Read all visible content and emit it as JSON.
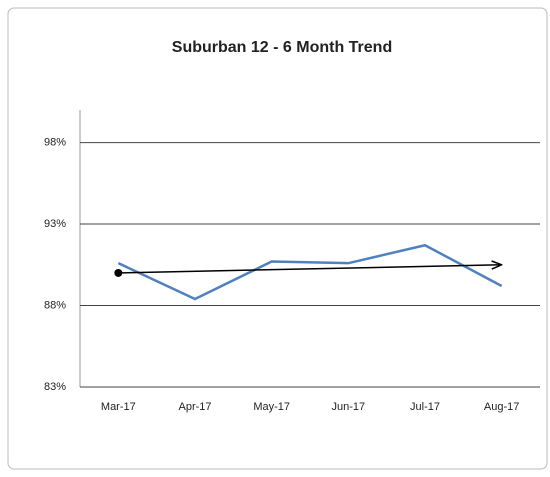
{
  "chart_data": {
    "type": "line",
    "title": "Suburban 12 - 6 Month Trend",
    "categories": [
      "Mar-17",
      "Apr-17",
      "May-17",
      "Jun-17",
      "Jul-17",
      "Aug-17"
    ],
    "values": [
      90.6,
      88.4,
      90.7,
      90.6,
      91.7,
      89.2
    ],
    "color": "#4f81bd",
    "trend": {
      "start": 90.0,
      "end": 90.5,
      "color": "#000000"
    },
    "ylim": [
      83,
      100
    ],
    "yticks": [
      {
        "value": 83,
        "label": "83%"
      },
      {
        "value": 88,
        "label": "88%"
      },
      {
        "value": 93,
        "label": "93%"
      },
      {
        "value": 98,
        "label": "98%"
      }
    ],
    "grid": true
  }
}
